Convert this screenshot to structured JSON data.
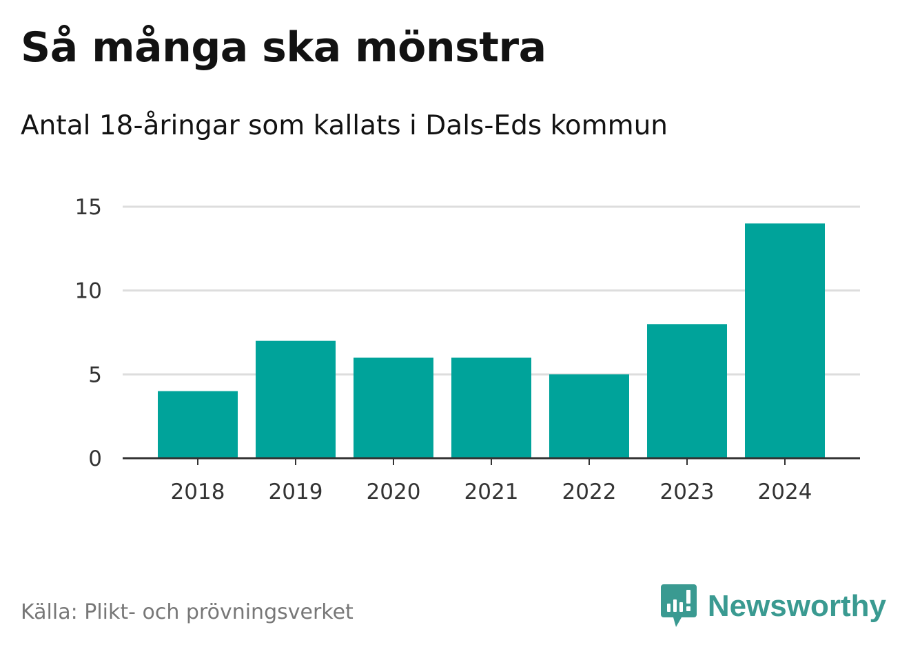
{
  "header": {
    "title": "Så många ska mönstra",
    "subtitle": "Antal 18-åringar som kallats i Dals-Eds kommun"
  },
  "footer": {
    "source": "Källa: Plikt- och prövningsverket",
    "brand": "Newsworthy"
  },
  "colors": {
    "bar": "#00a39a",
    "grid": "#dddddd",
    "axis": "#333333",
    "brand": "#3a9a91"
  },
  "chart_data": {
    "type": "bar",
    "title": "Så många ska mönstra",
    "subtitle": "Antal 18-åringar som kallats i Dals-Eds kommun",
    "xlabel": "",
    "ylabel": "",
    "categories": [
      "2018",
      "2019",
      "2020",
      "2021",
      "2022",
      "2023",
      "2024"
    ],
    "values": [
      4,
      7,
      6,
      6,
      5,
      8,
      14
    ],
    "ylim": [
      0,
      15
    ],
    "yticks": [
      0,
      5,
      10,
      15
    ],
    "grid": true,
    "legend": "none"
  }
}
